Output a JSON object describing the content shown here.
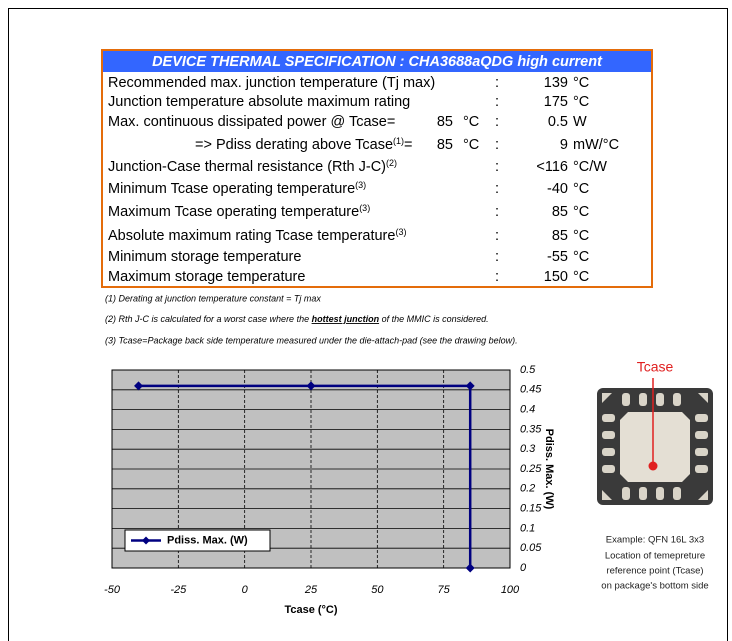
{
  "table": {
    "title": "DEVICE THERMAL SPECIFICATION : CHA3688aQDG high current",
    "rows": [
      {
        "label": "Recommended max. junction temperature (Tj max)",
        "sep": ":",
        "value": "139",
        "unit": "°C"
      },
      {
        "label": "Junction temperature absolute maximum rating",
        "sep": ":",
        "value": "175",
        "unit": "°C"
      },
      {
        "label": "Max. continuous dissipated power @ Tcase=",
        "cond_value": "85",
        "cond_unit": "°C",
        "sep": ":",
        "value": "0.5",
        "unit": "W"
      },
      {
        "label": "=> Pdiss derating above Tcase",
        "sup": "(1)",
        "tail": "=",
        "cond_value": "85",
        "cond_unit": "°C",
        "sep": ":",
        "value": "9",
        "unit": "mW/°C"
      },
      {
        "label": "Junction-Case thermal resistance (Rth J-C)",
        "sup": "(2)",
        "sep": ":",
        "value": "<116",
        "unit": "°C/W"
      },
      {
        "label": "Minimum Tcase operating temperature",
        "sup": "(3)",
        "sep": ":",
        "value": "-40",
        "unit": "°C"
      },
      {
        "label": "Maximum Tcase operating temperature",
        "sup": "(3)",
        "sep": ":",
        "value": "85",
        "unit": "°C"
      },
      {
        "label": "Absolute maximum rating Tcase temperature",
        "sup": "(3)",
        "sep": ":",
        "value": "85",
        "unit": "°C"
      },
      {
        "label": "Minimum storage temperature",
        "sep": ":",
        "value": "-55",
        "unit": "°C"
      },
      {
        "label": "Maximum storage temperature",
        "sep": ":",
        "value": "150",
        "unit": "°C"
      }
    ]
  },
  "notes": [
    [
      "(1) Derating at junction temperature constant = Tj max"
    ],
    [
      "(2) Rth J-C is calculated for a worst case where the ",
      "hottest junction",
      " of the MMIC is considered."
    ],
    [
      "(3) Tcase=Package back side temperature measured under the die-attach-pad (see the drawing below)."
    ]
  ],
  "chart_data": {
    "type": "line",
    "xlabel": "Tcase (°C)",
    "ylabel": "Pdiss. Max. (W)",
    "x": [
      -40,
      25,
      85,
      85
    ],
    "series": [
      {
        "name": "Pdiss. Max. (W)",
        "color": "#000080",
        "values": [
          0.46,
          0.46,
          0.46,
          0
        ]
      }
    ],
    "xlim": [
      -50,
      100
    ],
    "xticks": [
      -50,
      -25,
      0,
      25,
      50,
      75,
      100
    ],
    "ylim": [
      0,
      0.5
    ],
    "yticks": [
      0,
      0.05,
      0.1,
      0.15,
      0.2,
      0.25,
      0.3,
      0.35,
      0.4,
      0.45,
      0.5
    ],
    "grid": true,
    "legend": "lower left"
  },
  "figure": {
    "label": "Tcase",
    "caption": [
      "Example: QFN 16L 3x3",
      "Location of temepreture",
      "reference point (Tcase)",
      "on package's bottom side"
    ]
  }
}
